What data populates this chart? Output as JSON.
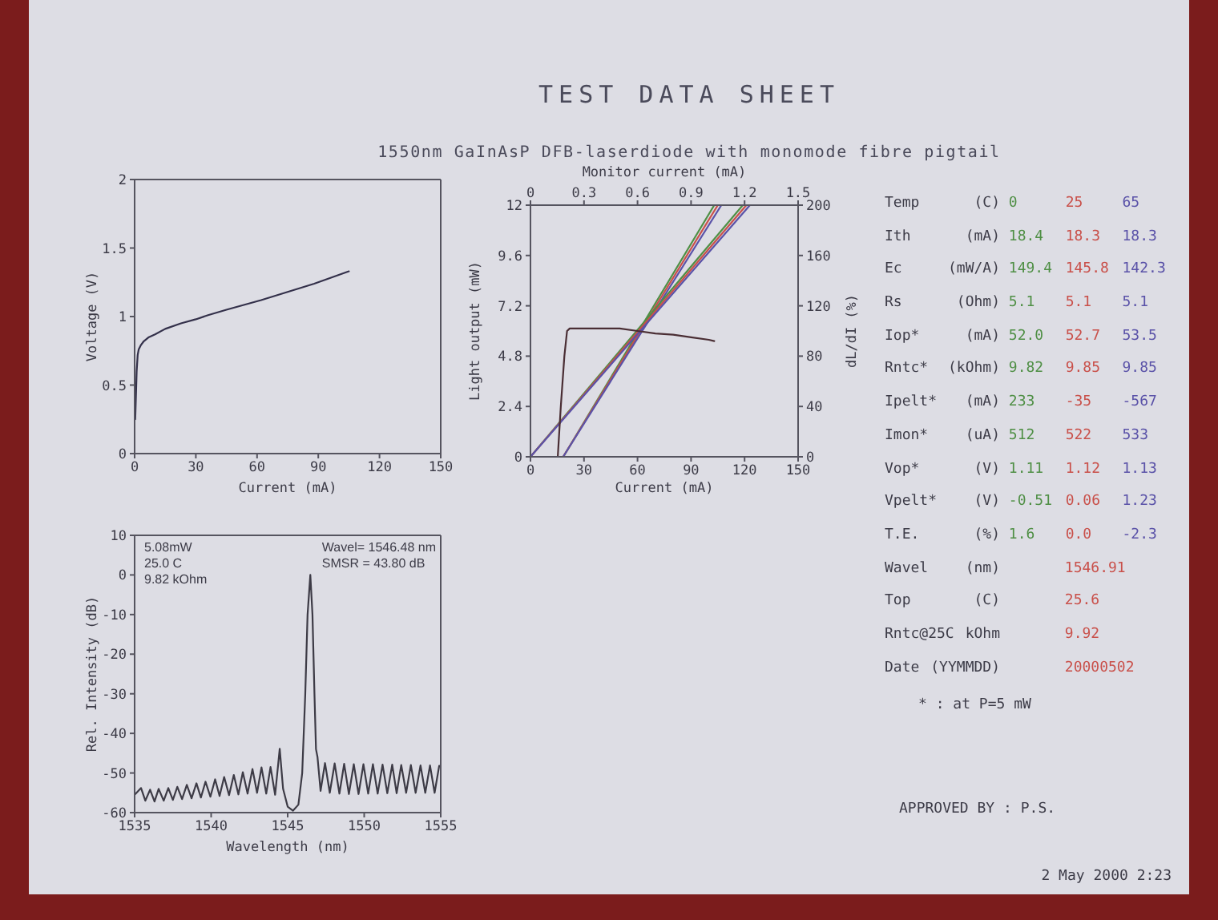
{
  "chart_data": [
    {
      "type": "other",
      "title": "TEST DATA SHEET",
      "subtitle": "1550nm GaInAsP DFB-laserdiode with monomode fibre pigtail"
    },
    {
      "type": "line",
      "xlabel": "Current (mA)",
      "ylabel": "Voltage (V)",
      "xlim": [
        0,
        150
      ],
      "xticks": [
        0,
        30,
        60,
        90,
        120,
        150
      ],
      "ylim": [
        0,
        2
      ],
      "yticks": [
        0,
        0.5,
        1,
        1.5,
        2
      ],
      "color": "#33304a",
      "x": [
        0.3,
        1,
        1.5,
        2,
        3,
        4.5,
        7,
        10,
        15,
        22.7,
        30,
        36,
        45,
        62,
        75,
        88,
        105
      ],
      "values": [
        0.25,
        0.6,
        0.72,
        0.76,
        0.79,
        0.82,
        0.85,
        0.87,
        0.91,
        0.95,
        0.98,
        1.01,
        1.05,
        1.12,
        1.18,
        1.24,
        1.33
      ]
    },
    {
      "type": "line",
      "xlabel": "Current (mA)",
      "ylabel": "Light output (mW)",
      "y2label": "dL/dI (%)",
      "x2label": "Monitor current (mA)",
      "xlim": [
        0,
        150
      ],
      "xticks": [
        0,
        30,
        60,
        90,
        120,
        150
      ],
      "ylim": [
        0,
        12
      ],
      "yticks": [
        0,
        2.4,
        4.8,
        7.2,
        9.6,
        12
      ],
      "y2lim": [
        0,
        200
      ],
      "y2ticks": [
        0,
        40,
        80,
        120,
        160,
        200
      ],
      "x2lim": [
        0,
        1.5
      ],
      "x2ticks": [
        0,
        0.3,
        0.6,
        0.9,
        1.2,
        1.5
      ],
      "series": [
        {
          "color": "#4f8f45",
          "x": [
            18.4,
            103
          ],
          "values": [
            0,
            12
          ]
        },
        {
          "color": "#c9504a",
          "x": [
            18.3,
            105
          ],
          "values": [
            0,
            12
          ]
        },
        {
          "color": "#5a52a8",
          "x": [
            18.3,
            107
          ],
          "values": [
            0,
            12
          ]
        },
        {
          "color": "#4f8f45",
          "axis": "x2",
          "x": [
            0,
            1.19
          ],
          "values": [
            0,
            12
          ]
        },
        {
          "color": "#c9504a",
          "axis": "x2",
          "x": [
            0,
            1.21
          ],
          "values": [
            0,
            12
          ]
        },
        {
          "color": "#5a52a8",
          "axis": "x2",
          "x": [
            0,
            1.23
          ],
          "values": [
            0,
            12
          ]
        },
        {
          "color": "#4a2e34",
          "axis": "y2",
          "x": [
            15.3,
            17,
            19,
            20.5,
            22,
            30,
            40,
            50,
            60,
            70,
            80,
            90,
            100,
            103
          ],
          "values": [
            0,
            40,
            80,
            100,
            102,
            102,
            102,
            102,
            100,
            98,
            97,
            95,
            93,
            92
          ]
        }
      ]
    },
    {
      "type": "other",
      "annotations": [
        "Temp (C) 0 25 65",
        "Ith (mA) 18.4 18.3 18.3",
        "Ec (mW/A) 149.4 145.8 142.3",
        "Rs (Ohm) 5.1 5.1 5.1",
        "Iop* (mA) 52.0 52.7 53.5",
        "Rntc* (kOhm) 9.82 9.85 9.85",
        "Ipelt* (mA) 233 -35 -567",
        "Imon* (uA) 512 522 533",
        "Vop* (V) 1.11 1.12 1.13",
        "Vpelt* (V) -0.51 0.06 1.23",
        "T.E. (%) 1.6 0.0 -2.3",
        "Wavel (nm) 1546.91",
        "Top (C) 25.6",
        "Rntc@25C kOhm 9.92",
        "Date (YYMMDD) 20000502"
      ]
    },
    {
      "type": "line",
      "xlabel": "Wavelength (nm)",
      "ylabel": "Rel. Intensity (dB)",
      "xlim": [
        1535,
        1555
      ],
      "xticks": [
        1535,
        1540,
        1545,
        1550,
        1555
      ],
      "ylim": [
        -60,
        10
      ],
      "yticks": [
        -60,
        -50,
        -40,
        -30,
        -20,
        -10,
        0,
        10
      ],
      "color": "#3d3b46",
      "annotations": [
        "5.08mW",
        "25.0 C",
        "9.82 kOhm",
        "Wavel= 1546.48 nm",
        "SMSR = 43.80 dB"
      ],
      "x": [
        1535.0,
        1535.42,
        1535.7,
        1536.01,
        1536.3,
        1536.57,
        1536.9,
        1537.2,
        1537.5,
        1537.79,
        1538.1,
        1538.41,
        1538.72,
        1539.04,
        1539.33,
        1539.63,
        1539.95,
        1540.26,
        1540.55,
        1540.85,
        1541.17,
        1541.48,
        1541.78,
        1542.07,
        1542.38,
        1542.7,
        1543.0,
        1543.29,
        1543.6,
        1543.88,
        1544.18,
        1544.48,
        1544.7,
        1545.0,
        1545.35,
        1545.7,
        1545.95,
        1546.15,
        1546.3,
        1546.48,
        1546.62,
        1546.75,
        1546.85,
        1546.95,
        1547.15,
        1547.44,
        1547.75,
        1548.07,
        1548.38,
        1548.69,
        1549.0,
        1549.32,
        1549.63,
        1549.95,
        1550.26,
        1550.57,
        1550.88,
        1551.2,
        1551.51,
        1551.83,
        1552.12,
        1552.42,
        1552.74,
        1553.05,
        1553.36,
        1553.68,
        1553.99,
        1554.3,
        1554.6,
        1554.9
      ],
      "values": [
        -55.5,
        -53.8,
        -57.0,
        -54.2,
        -57.2,
        -54.0,
        -57.0,
        -53.8,
        -56.8,
        -53.5,
        -56.6,
        -53.0,
        -56.4,
        -52.6,
        -56.2,
        -52.2,
        -56.0,
        -51.6,
        -55.8,
        -51.0,
        -55.6,
        -50.5,
        -55.4,
        -49.8,
        -55.2,
        -49.0,
        -55.0,
        -48.6,
        -55.2,
        -48.5,
        -55.5,
        -43.9,
        -54.0,
        -58.5,
        -59.5,
        -58.0,
        -50.0,
        -30.0,
        -10.0,
        0,
        -10.0,
        -30.0,
        -44.0,
        -46.0,
        -54.5,
        -47.5,
        -55.0,
        -47.6,
        -55.2,
        -47.7,
        -55.3,
        -47.8,
        -55.3,
        -47.8,
        -55.2,
        -47.8,
        -55.2,
        -47.9,
        -55.1,
        -47.9,
        -55.1,
        -48.0,
        -55.0,
        -48.0,
        -55.0,
        -48.1,
        -55.0,
        -48.1,
        -55.0,
        -48.2
      ]
    },
    {
      "type": "other",
      "annotations": [
        "* : at P=5 mW",
        "APPROVED BY : P.S.",
        "2 May 2000 2:23"
      ]
    }
  ]
}
